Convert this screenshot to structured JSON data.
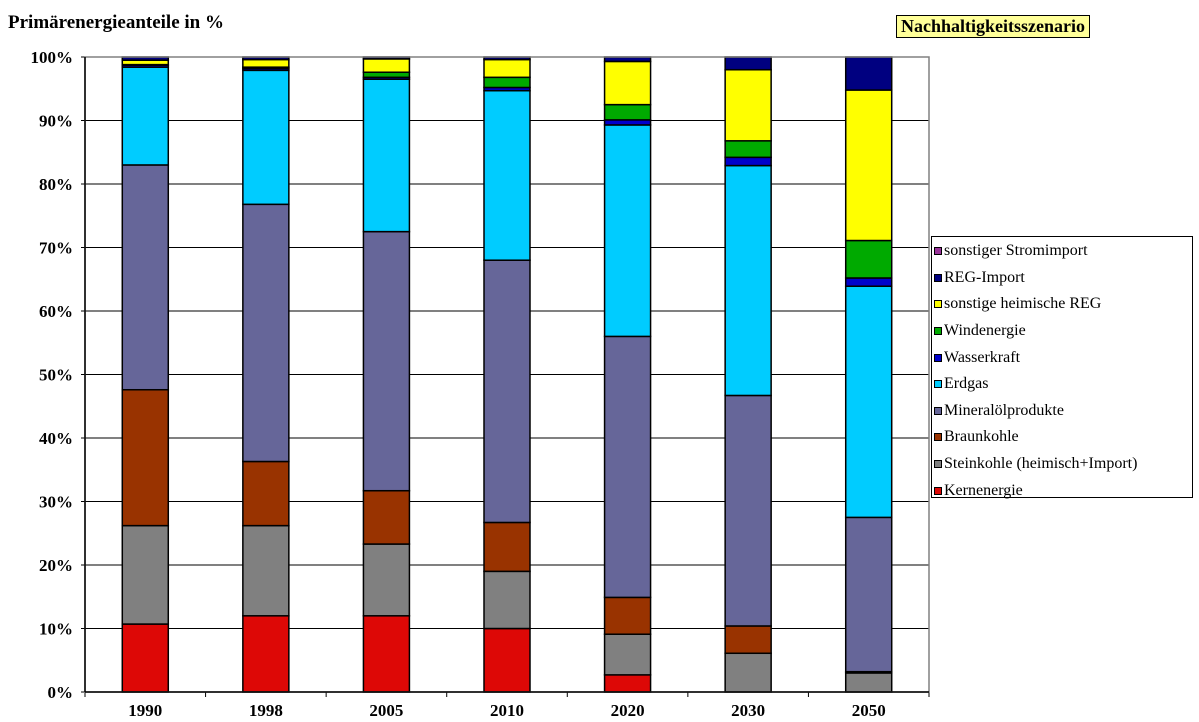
{
  "chart_data": {
    "type": "bar",
    "stacked": true,
    "title": "Primärenergieanteile in %",
    "scenario_label": "Nachhaltigkeitsszenario",
    "categories": [
      "1990",
      "1998",
      "2005",
      "2010",
      "2020",
      "2030",
      "2050"
    ],
    "ylim": [
      0,
      100
    ],
    "yticks": [
      "0%",
      "10%",
      "20%",
      "30%",
      "40%",
      "50%",
      "60%",
      "70%",
      "80%",
      "90%",
      "100%"
    ],
    "grid": true,
    "legend_position": "right",
    "series": [
      {
        "name": "Kernenergie",
        "color": "#dd0806",
        "values": [
          10.7,
          12.0,
          12.0,
          10.0,
          2.7,
          0.0,
          0.0
        ]
      },
      {
        "name": "Steinkohle (heimisch+Import)",
        "color": "#808080",
        "values": [
          15.5,
          14.2,
          11.3,
          9.0,
          6.4,
          6.1,
          3.0
        ]
      },
      {
        "name": "Braunkohle",
        "color": "#993300",
        "values": [
          21.4,
          10.1,
          8.4,
          7.7,
          5.8,
          4.3,
          0.2
        ]
      },
      {
        "name": "Mineralölprodukte",
        "color": "#666699",
        "values": [
          35.4,
          40.5,
          40.8,
          41.3,
          41.1,
          36.3,
          24.3
        ]
      },
      {
        "name": "Erdgas",
        "color": "#00ccff",
        "values": [
          15.4,
          21.1,
          24.0,
          26.7,
          33.3,
          36.2,
          36.4
        ]
      },
      {
        "name": "Wasserkraft",
        "color": "#0000cc",
        "values": [
          0.3,
          0.3,
          0.3,
          0.5,
          0.8,
          1.3,
          1.3
        ]
      },
      {
        "name": "Windenergie",
        "color": "#00aa00",
        "values": [
          0.1,
          0.2,
          0.8,
          1.6,
          2.4,
          2.6,
          5.9
        ]
      },
      {
        "name": "sonstige heimische REG",
        "color": "#ffff00",
        "values": [
          0.7,
          1.2,
          2.1,
          2.8,
          6.8,
          11.2,
          23.7
        ]
      },
      {
        "name": "REG-Import",
        "color": "#000080",
        "values": [
          0.5,
          0.4,
          0.3,
          0.4,
          0.7,
          2.0,
          5.2
        ]
      },
      {
        "name": "sonstiger Stromimport",
        "color": "#993399",
        "values": [
          0.0,
          0.0,
          0.0,
          0.0,
          0.0,
          0.0,
          0.0
        ]
      }
    ]
  }
}
